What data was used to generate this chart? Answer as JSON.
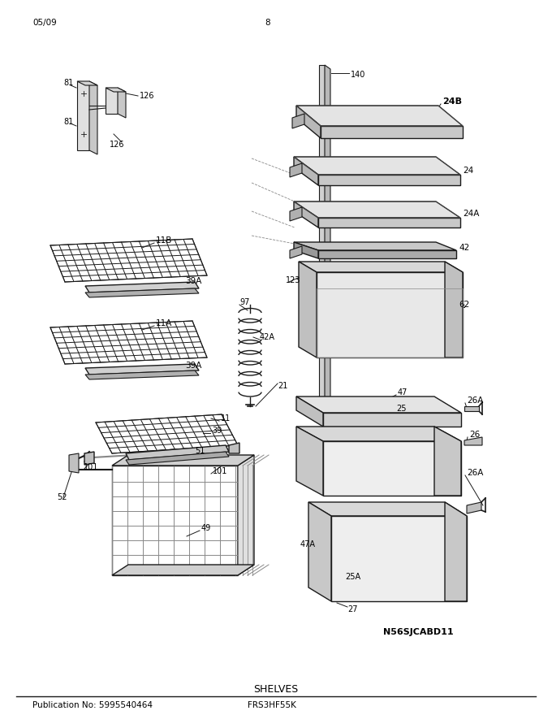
{
  "title": "SHELVES",
  "pub_no": "Publication No: 5995540464",
  "model": "FRS3HF55K",
  "date": "05/09",
  "page": "8",
  "diagram_id": "N56SJCABD11",
  "bg_color": "#ffffff",
  "line_color": "#1a1a1a",
  "gray_light": "#d8d8d8",
  "gray_mid": "#b8b8b8",
  "gray_dark": "#888888"
}
